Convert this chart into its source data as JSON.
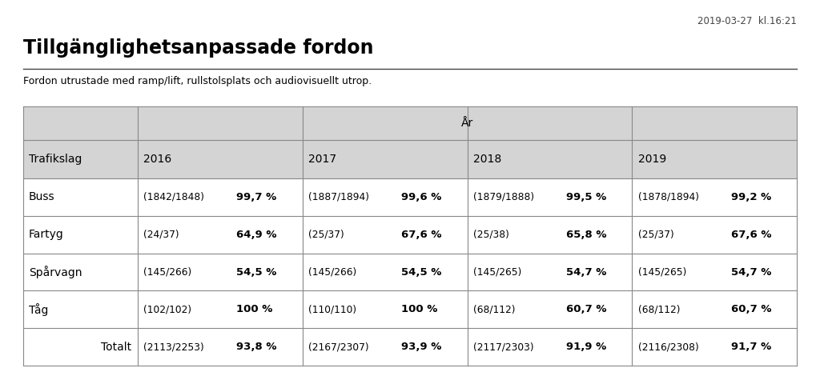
{
  "timestamp": "2019-03-27  kl.16:21",
  "title": "Tillgänglighetsanpassade fordon",
  "subtitle": "Fordon utrustade med ramp/lift, rullstolsplats och audiovisuellt utrop.",
  "year_header": "År",
  "col_header": "Trafikslag",
  "years": [
    "2016",
    "2017",
    "2018",
    "2019"
  ],
  "rows": [
    {
      "label": "Buss",
      "totalt": false,
      "data": [
        {
          "ratio": "(1842/1848)",
          "pct": "99,7 %"
        },
        {
          "ratio": "(1887/1894)",
          "pct": "99,6 %"
        },
        {
          "ratio": "(1879/1888)",
          "pct": "99,5 %"
        },
        {
          "ratio": "(1878/1894)",
          "pct": "99,2 %"
        }
      ]
    },
    {
      "label": "Fartyg",
      "totalt": false,
      "data": [
        {
          "ratio": "(24/37)",
          "pct": "64,9 %"
        },
        {
          "ratio": "(25/37)",
          "pct": "67,6 %"
        },
        {
          "ratio": "(25/38)",
          "pct": "65,8 %"
        },
        {
          "ratio": "(25/37)",
          "pct": "67,6 %"
        }
      ]
    },
    {
      "label": "Spårvagn",
      "totalt": false,
      "data": [
        {
          "ratio": "(145/266)",
          "pct": "54,5 %"
        },
        {
          "ratio": "(145/266)",
          "pct": "54,5 %"
        },
        {
          "ratio": "(145/265)",
          "pct": "54,7 %"
        },
        {
          "ratio": "(145/265)",
          "pct": "54,7 %"
        }
      ]
    },
    {
      "label": "Tåg",
      "totalt": false,
      "data": [
        {
          "ratio": "(102/102)",
          "pct": "100 %"
        },
        {
          "ratio": "(110/110)",
          "pct": "100 %"
        },
        {
          "ratio": "(68/112)",
          "pct": "60,7 %"
        },
        {
          "ratio": "(68/112)",
          "pct": "60,7 %"
        }
      ]
    },
    {
      "label": "Totalt",
      "totalt": true,
      "data": [
        {
          "ratio": "(2113/2253)",
          "pct": "93,8 %"
        },
        {
          "ratio": "(2167/2307)",
          "pct": "93,9 %"
        },
        {
          "ratio": "(2117/2303)",
          "pct": "91,9 %"
        },
        {
          "ratio": "(2116/2308)",
          "pct": "91,7 %"
        }
      ]
    }
  ],
  "bg_color": "#ffffff",
  "table_header_bg": "#d4d4d4",
  "table_border_color": "#888888",
  "title_color": "#000000",
  "text_color": "#000000",
  "timestamp_color": "#444444",
  "outer_border_color": "#aaccee"
}
